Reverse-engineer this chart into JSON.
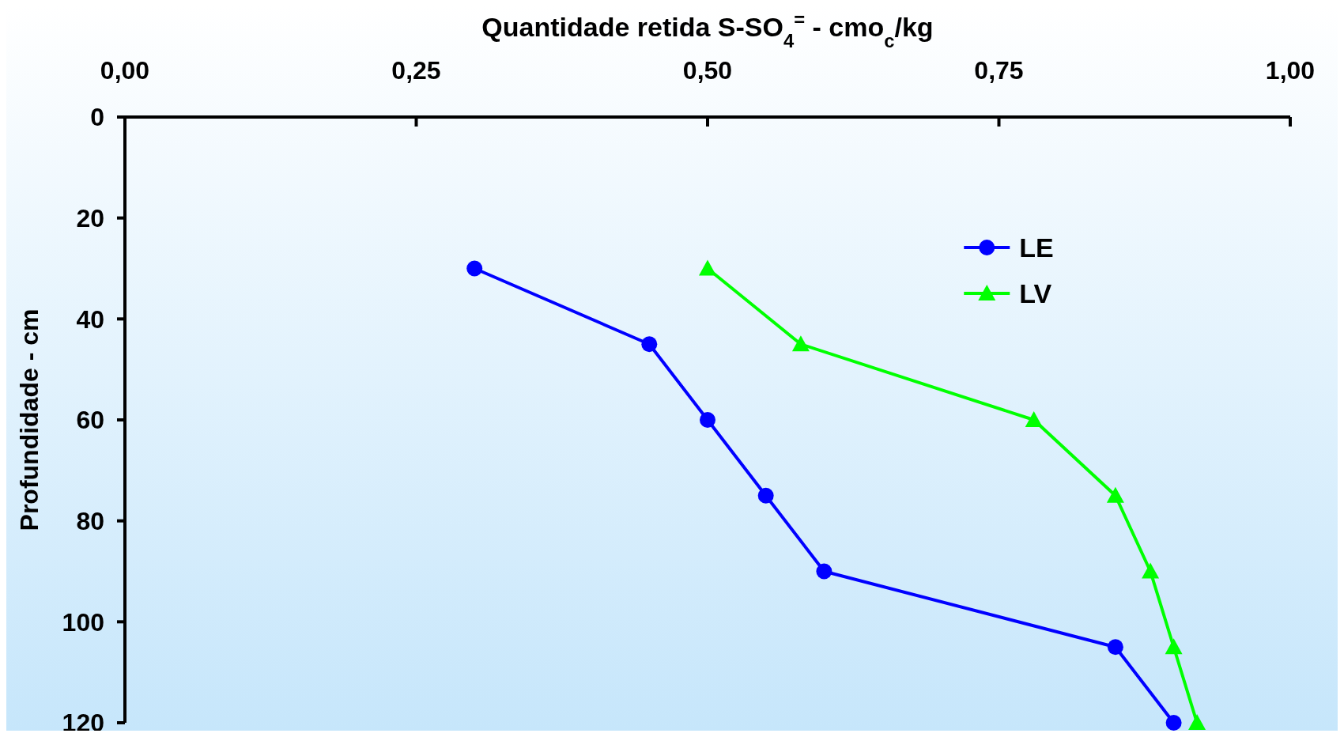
{
  "chart_data": {
    "type": "line",
    "xlabel": "Quantidade retida S-SO$_{4}$$^{=}$  -  cmo$_{c}$/kg",
    "ylabel": "Profundidade - cm",
    "xlim": [
      0,
      1
    ],
    "xticks": [
      {
        "value": 0,
        "label": "0,00"
      },
      {
        "value": 0.25,
        "label": "0,25"
      },
      {
        "value": 0.5,
        "label": "0,50"
      },
      {
        "value": 0.75,
        "label": "0,75"
      },
      {
        "value": 1,
        "label": "1,00"
      }
    ],
    "ylim": [
      120,
      0
    ],
    "yticks": [
      0,
      20,
      40,
      60,
      80,
      100,
      120
    ],
    "grid": false,
    "legend": "top right",
    "series": [
      {
        "name": "LE",
        "color": "#0000ff",
        "marker": "circle",
        "x": [
          0.3,
          0.45,
          0.5,
          0.55,
          0.6,
          0.85,
          0.9
        ],
        "values": [
          30,
          45,
          60,
          75,
          90,
          105,
          120
        ]
      },
      {
        "name": "LV",
        "color": "#00ff00",
        "marker": "triangle",
        "x": [
          0.5,
          0.58,
          0.78,
          0.85,
          0.88,
          0.9,
          0.92
        ],
        "values": [
          30,
          45,
          60,
          75,
          90,
          105,
          120
        ]
      }
    ]
  }
}
